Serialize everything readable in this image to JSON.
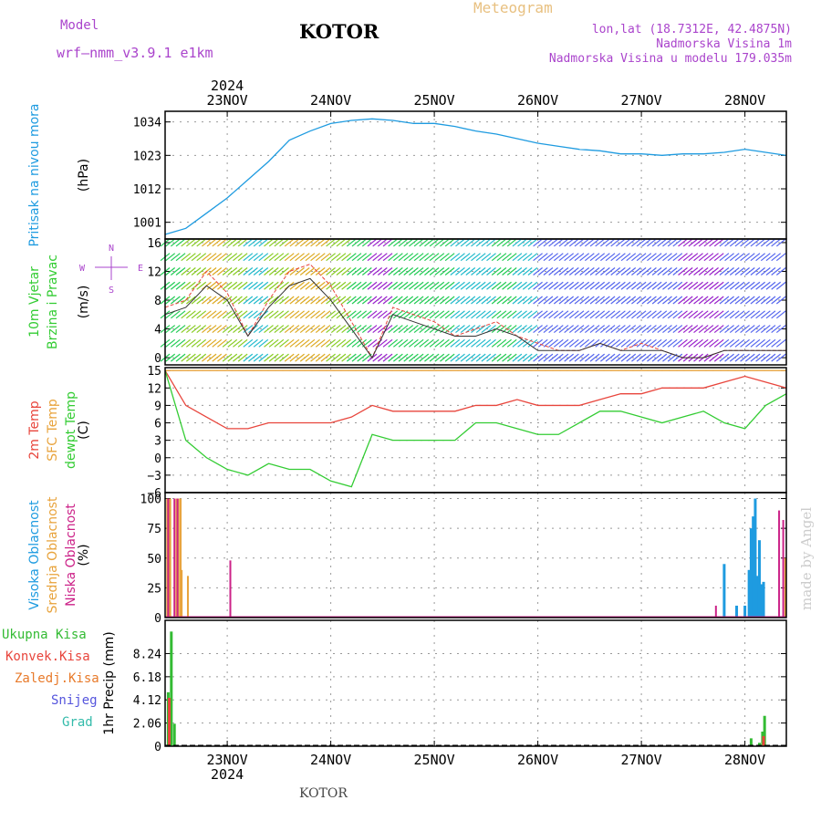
{
  "header": {
    "model_label": "Model",
    "model_name": "wrf–nmm_v3.9.1  e1km",
    "station": "KOTOR",
    "product": "Meteogram",
    "coords": "lon,lat (18.7312E, 42.4875N)",
    "elevation": "Nadmorska Visina 1m",
    "model_elevation": "Nadmorska Visina u modelu 179.035m",
    "footer_station": "KOTOR",
    "credit": "made by Angel"
  },
  "colors": {
    "pressure": "#1e9be0",
    "temp2m": "#e8453c",
    "sfc": "#e8a33c",
    "dewpt": "#33cc33",
    "high_cloud": "#1e9be0",
    "mid_cloud": "#e8a33c",
    "low_cloud": "#cc2288",
    "total_precip": "#33bb33",
    "conv_precip": "#e8453c",
    "frz_precip": "#e87a2a",
    "snow": "#5555dd",
    "hail": "#33bbaa",
    "title_purple": "#aa44cc"
  },
  "chart_data": [
    {
      "type": "line",
      "name": "pressure",
      "ylabel_lines": [
        "Pritisak na nivou mora",
        "(hPa)"
      ],
      "ylim": [
        995.5,
        1037.5
      ],
      "yticks": [
        1001,
        1012,
        1023,
        1034
      ],
      "x": [
        0,
        1,
        2,
        3,
        4,
        5,
        6,
        7,
        8,
        9,
        10,
        11,
        12,
        13,
        14,
        15,
        16,
        17,
        18,
        19,
        20,
        21,
        22,
        23,
        24,
        25,
        26,
        27,
        28,
        29,
        30
      ],
      "values": [
        997,
        999,
        1004,
        1009,
        1015,
        1021,
        1028,
        1031,
        1033.5,
        1034.5,
        1035,
        1034.5,
        1033.5,
        1033.5,
        1032.5,
        1031,
        1030,
        1028.5,
        1027,
        1026,
        1025,
        1024.5,
        1023.5,
        1023.5,
        1023,
        1023.5,
        1023.5,
        1024,
        1025,
        1024,
        1023
      ]
    },
    {
      "type": "line",
      "name": "wind",
      "ylabel_lines": [
        "10m Vjetar",
        "Brzina i Pravac",
        "(m/s)"
      ],
      "compass": [
        "N",
        "E",
        "S",
        "W"
      ],
      "ylim": [
        -1,
        16.5
      ],
      "yticks": [
        0,
        4,
        8,
        12,
        16
      ],
      "x": [
        0,
        1,
        2,
        3,
        4,
        5,
        6,
        7,
        8,
        9,
        10,
        11,
        12,
        13,
        14,
        15,
        16,
        17,
        18,
        19,
        20,
        21,
        22,
        23,
        24,
        25,
        26,
        27,
        28,
        29,
        30
      ],
      "speed": [
        7,
        8,
        12,
        9,
        3,
        8,
        12,
        13,
        10,
        5,
        0,
        7,
        6,
        5,
        3,
        4,
        5,
        3,
        2,
        1,
        1,
        2,
        1,
        2,
        1,
        0,
        0,
        1,
        1,
        1,
        1
      ],
      "mean": [
        6,
        7,
        10,
        8,
        3,
        7,
        10,
        11,
        8,
        4,
        0,
        6,
        5,
        4,
        3,
        3,
        4,
        3,
        1,
        1,
        1,
        2,
        1,
        1,
        1,
        0,
        0,
        1,
        1,
        1,
        1
      ]
    },
    {
      "type": "line",
      "name": "temperature",
      "ylabel_lines": [
        "2m Temp",
        "SFC Temp",
        "dewpt Temp",
        "(C)"
      ],
      "ylim": [
        -6,
        15.5
      ],
      "yticks": [
        -6,
        -3,
        0,
        3,
        6,
        9,
        12,
        15
      ],
      "x": [
        0,
        1,
        2,
        3,
        4,
        5,
        6,
        7,
        8,
        9,
        10,
        11,
        12,
        13,
        14,
        15,
        16,
        17,
        18,
        19,
        20,
        21,
        22,
        23,
        24,
        25,
        26,
        27,
        28,
        29,
        30
      ],
      "series": [
        {
          "key": "sfc",
          "values": [
            15,
            15,
            15,
            15,
            15,
            15,
            15,
            15,
            15,
            15,
            15,
            15,
            15,
            15,
            15,
            15,
            15,
            15,
            15,
            15,
            15,
            15,
            15,
            15,
            15,
            15,
            15,
            15,
            15,
            15,
            15
          ]
        },
        {
          "key": "temp2m",
          "values": [
            15,
            9,
            7,
            5,
            5,
            6,
            6,
            6,
            6,
            7,
            9,
            8,
            8,
            8,
            8,
            9,
            9,
            10,
            9,
            9,
            9,
            10,
            11,
            11,
            12,
            12,
            12,
            13,
            14,
            13,
            12
          ]
        },
        {
          "key": "dewpt",
          "values": [
            15,
            3,
            0,
            -2,
            -3,
            -1,
            -2,
            -2,
            -4,
            -5,
            4,
            3,
            3,
            3,
            3,
            6,
            6,
            5,
            4,
            4,
            6,
            8,
            8,
            7,
            6,
            7,
            8,
            6,
            5,
            9,
            11
          ]
        }
      ]
    },
    {
      "type": "bar",
      "name": "cloud",
      "ylabel_lines": [
        "Visoka Oblacnost",
        "Srednja Oblacnost",
        "Niska Oblacnost",
        "(%)"
      ],
      "ylim": [
        0,
        105
      ],
      "yticks": [
        0,
        25,
        50,
        75,
        100
      ],
      "series": [
        {
          "key": "high_cloud",
          "x": [
            27.0,
            27.6,
            28.0,
            28.2,
            28.3,
            28.4,
            28.5,
            28.6,
            28.7,
            28.8,
            28.9
          ],
          "values": [
            45,
            10,
            10,
            40,
            75,
            85,
            100,
            35,
            65,
            28,
            30
          ]
        },
        {
          "key": "mid_cloud",
          "x": [
            0.1,
            0.2,
            0.25,
            0.55,
            0.65,
            0.75,
            0.8,
            1.1,
            29.95
          ],
          "values": [
            100,
            100,
            100,
            100,
            100,
            100,
            40,
            35,
            50
          ]
        },
        {
          "key": "low_cloud",
          "x": [
            0.15,
            0.45,
            0.6,
            3.15,
            26.6,
            29.65,
            29.85
          ],
          "values": [
            100,
            100,
            100,
            48,
            10,
            90,
            82
          ]
        }
      ]
    },
    {
      "type": "bar",
      "name": "precip",
      "ylabel_lines": [
        "1hr Precip (mm)"
      ],
      "legend": [
        "Ukupna Kisa",
        "Konvek.Kisa",
        "Zaledj.Kisa",
        "Snijeg",
        "Grad"
      ],
      "ylim": [
        0,
        11.2
      ],
      "yticks": [
        0,
        2.06,
        4.12,
        6.18,
        8.24
      ],
      "series": [
        {
          "key": "total_precip",
          "x": [
            0.15,
            0.3,
            0.45,
            28.3,
            28.7,
            28.85,
            28.95
          ],
          "values": [
            4.8,
            10.2,
            2.0,
            0.7,
            0.3,
            1.3,
            2.7
          ]
        },
        {
          "key": "conv_precip",
          "x": [
            0.2,
            28.9
          ],
          "values": [
            4.3,
            0.9
          ]
        }
      ]
    }
  ],
  "time_axis": {
    "top_year": "2024",
    "bottom_year": "2024",
    "ticks": [
      {
        "x": 3,
        "label": "23NOV"
      },
      {
        "x": 8,
        "label": "24NOV"
      },
      {
        "x": 13,
        "label": "25NOV"
      },
      {
        "x": 18,
        "label": "26NOV"
      },
      {
        "x": 23,
        "label": "27NOV"
      },
      {
        "x": 28,
        "label": "28NOV"
      }
    ],
    "xlim": [
      0,
      30
    ]
  }
}
